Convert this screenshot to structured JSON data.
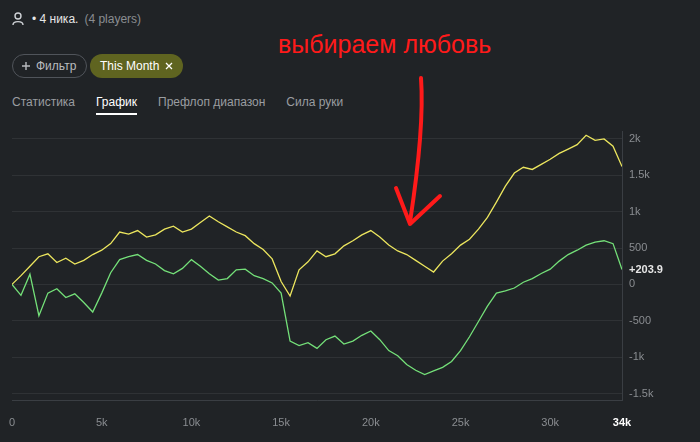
{
  "header": {
    "players": "• 4 ника.",
    "players_note": "(4 players)",
    "filter": "Фильтр",
    "period": "This Month",
    "tabs": [
      "Статистика",
      "График",
      "Префлоп диапазон",
      "Сила руки"
    ],
    "active_tab": "График"
  },
  "chart_data": {
    "type": "line",
    "annotations": [
      "выбираем любовь"
    ],
    "x": [
      0,
      500,
      1000,
      1500,
      2000,
      2500,
      3000,
      3500,
      4000,
      4500,
      5000,
      5500,
      6000,
      6500,
      7000,
      7500,
      8000,
      8500,
      9000,
      9500,
      10000,
      10500,
      11000,
      11500,
      12000,
      12500,
      13000,
      13500,
      14000,
      14500,
      15000,
      15500,
      16000,
      16500,
      17000,
      17500,
      18000,
      18500,
      19000,
      19500,
      20000,
      20500,
      21000,
      21500,
      22000,
      22500,
      23000,
      23500,
      24000,
      24500,
      25000,
      25500,
      26000,
      26500,
      27000,
      27500,
      28000,
      28500,
      29000,
      29500,
      30000,
      30500,
      31000,
      31500,
      32000,
      32500,
      33000,
      33500,
      34000
    ],
    "series": [
      {
        "color": "#ece65e",
        "values": [
          0,
          120,
          250,
          380,
          420,
          300,
          360,
          280,
          330,
          410,
          470,
          560,
          720,
          690,
          740,
          650,
          680,
          760,
          800,
          720,
          760,
          850,
          940,
          860,
          790,
          720,
          670,
          560,
          480,
          350,
          40,
          -160,
          200,
          310,
          460,
          380,
          420,
          530,
          600,
          680,
          740,
          650,
          540,
          460,
          410,
          330,
          250,
          170,
          320,
          420,
          540,
          620,
          760,
          920,
          1130,
          1350,
          1530,
          1610,
          1580,
          1650,
          1720,
          1800,
          1860,
          1920,
          2050,
          1980,
          2000,
          1900,
          1620
        ]
      },
      {
        "color": "#74e079",
        "values": [
          0,
          -150,
          140,
          -430,
          -120,
          -60,
          -180,
          -130,
          -250,
          -380,
          -120,
          160,
          340,
          380,
          410,
          330,
          280,
          190,
          145,
          220,
          340,
          250,
          145,
          60,
          80,
          200,
          210,
          120,
          80,
          20,
          -120,
          -780,
          -840,
          -800,
          -880,
          -760,
          -710,
          -820,
          -780,
          -700,
          -640,
          -760,
          -910,
          -980,
          -1100,
          -1180,
          -1240,
          -1190,
          -1140,
          -1060,
          -910,
          -720,
          -510,
          -300,
          -120,
          -90,
          -50,
          30,
          80,
          150,
          210,
          320,
          410,
          470,
          540,
          580,
          600,
          560,
          203.9
        ],
        "value_labels": [
          null,
          null,
          null,
          null,
          null,
          null,
          null,
          null,
          null,
          null,
          null,
          null,
          null,
          null,
          null,
          null,
          null,
          null,
          null,
          null,
          null,
          null,
          null,
          null,
          null,
          null,
          null,
          null,
          null,
          null,
          null,
          null,
          null,
          null,
          null,
          null,
          null,
          null,
          null,
          null,
          null,
          null,
          null,
          null,
          null,
          null,
          null,
          null,
          null,
          null,
          null,
          null,
          null,
          null,
          null,
          null,
          null,
          null,
          null,
          null,
          null,
          null,
          null,
          null,
          null,
          null,
          null,
          null,
          "+203.9"
        ]
      }
    ],
    "xlim": [
      0,
      34000
    ],
    "xticks": [
      0,
      {
        "value": 5000,
        "label": "5k"
      },
      {
        "value": 10000,
        "label": "10k"
      },
      {
        "value": 15000,
        "label": "15k"
      },
      {
        "value": 20000,
        "label": "20k"
      },
      {
        "value": 25000,
        "label": "25k"
      },
      {
        "value": 30000,
        "label": "30k"
      },
      {
        "value": 34000,
        "label": "34k"
      }
    ],
    "ylim": [
      -1600,
      2100
    ],
    "yticks": [
      {
        "value": 2000,
        "label": "2k"
      },
      {
        "value": 1500,
        "label": "1.5k"
      },
      {
        "value": 1000,
        "label": "1k"
      },
      500,
      0,
      -500,
      {
        "value": -1000,
        "label": "-1k"
      },
      {
        "value": -1500,
        "label": "-1.5k"
      }
    ],
    "grid": true
  }
}
